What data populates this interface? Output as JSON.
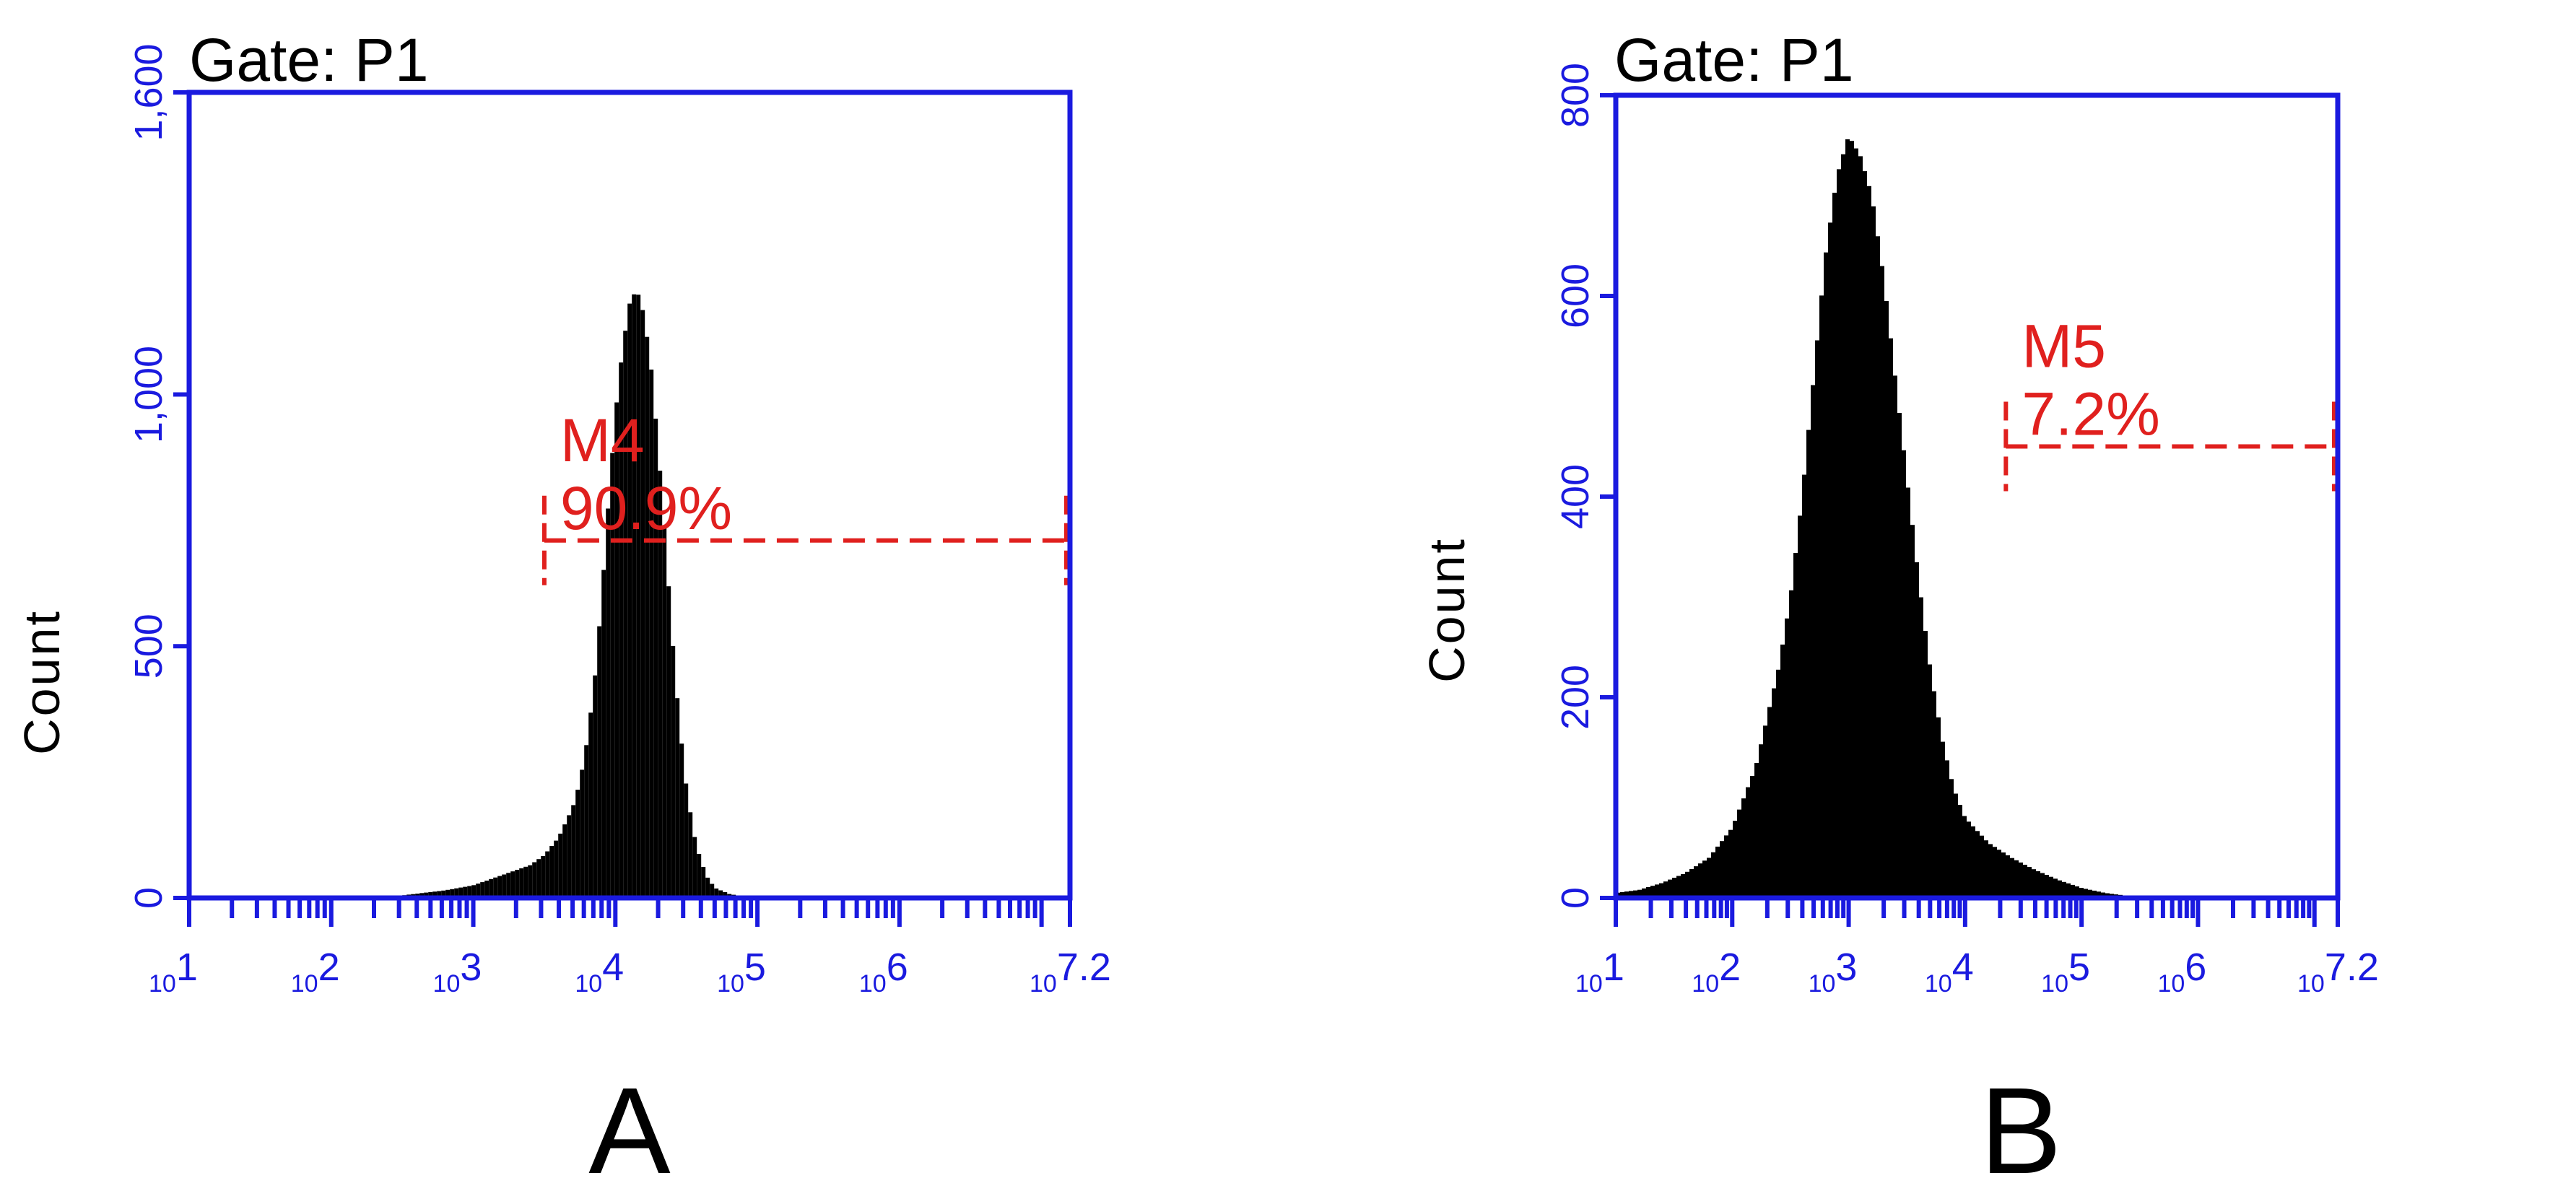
{
  "colors": {
    "axis": "#1a1adf",
    "marker": "#e0201e",
    "histogram": "#000000",
    "text": "#000000"
  },
  "chart_data": [
    {
      "type": "area",
      "panel_label": "A",
      "title": "Gate: P1",
      "xlabel": "",
      "ylabel": "Count",
      "x_scale": "log10",
      "xlim": [
        1,
        7.2
      ],
      "x_tick_labels": [
        {
          "base": "10",
          "exp": "1"
        },
        {
          "base": "10",
          "exp": "2"
        },
        {
          "base": "10",
          "exp": "3"
        },
        {
          "base": "10",
          "exp": "4"
        },
        {
          "base": "10",
          "exp": "5"
        },
        {
          "base": "10",
          "exp": "6"
        },
        {
          "base": "10",
          "exp": "7.2"
        }
      ],
      "ylim": [
        0,
        1600
      ],
      "y_ticks": [
        0,
        500,
        1000,
        1600
      ],
      "y_tick_labels": [
        "0",
        "500",
        "1,000",
        "1,600"
      ],
      "series": [
        {
          "x": [
            2.5,
            2.8,
            3.0,
            3.2,
            3.4,
            3.5,
            3.6,
            3.7,
            3.75,
            3.8,
            3.85,
            3.9,
            3.95,
            4.0,
            4.05,
            4.1,
            4.15,
            4.2,
            4.25,
            4.3,
            4.35,
            4.4,
            4.45,
            4.5,
            4.55,
            4.6,
            4.65,
            4.7,
            4.8,
            4.9,
            5.0
          ],
          "y": [
            5,
            15,
            25,
            45,
            65,
            85,
            120,
            180,
            230,
            310,
            420,
            580,
            780,
            960,
            1090,
            1180,
            1210,
            1160,
            1060,
            900,
            720,
            520,
            350,
            220,
            130,
            75,
            40,
            20,
            8,
            3,
            0
          ]
        }
      ],
      "markers": [
        {
          "name": "M4",
          "label": "90.9%",
          "x_start": 3.5,
          "x_end": 7.2,
          "y_level": 710
        }
      ]
    },
    {
      "type": "area",
      "panel_label": "B",
      "title": "Gate: P1",
      "xlabel": "",
      "ylabel": "Count",
      "x_scale": "log10",
      "xlim": [
        1,
        7.2
      ],
      "x_tick_labels": [
        {
          "base": "10",
          "exp": "1"
        },
        {
          "base": "10",
          "exp": "2"
        },
        {
          "base": "10",
          "exp": "3"
        },
        {
          "base": "10",
          "exp": "4"
        },
        {
          "base": "10",
          "exp": "5"
        },
        {
          "base": "10",
          "exp": "6"
        },
        {
          "base": "10",
          "exp": "7.2"
        }
      ],
      "ylim": [
        0,
        800
      ],
      "y_ticks": [
        0,
        200,
        400,
        600,
        800
      ],
      "y_tick_labels": [
        "0",
        "200",
        "400",
        "600",
        "800"
      ],
      "series": [
        {
          "x": [
            1.0,
            1.2,
            1.4,
            1.6,
            1.8,
            2.0,
            2.2,
            2.4,
            2.5,
            2.6,
            2.7,
            2.8,
            2.9,
            2.95,
            3.0,
            3.05,
            3.1,
            3.15,
            3.2,
            3.3,
            3.4,
            3.5,
            3.6,
            3.7,
            3.8,
            3.9,
            4.0,
            4.2,
            4.4,
            4.6,
            4.8,
            5.0,
            5.2,
            5.4,
            5.6
          ],
          "y": [
            5,
            8,
            15,
            25,
            40,
            70,
            130,
            230,
            300,
            400,
            520,
            640,
            720,
            740,
            760,
            750,
            740,
            720,
            700,
            620,
            520,
            420,
            320,
            230,
            160,
            110,
            80,
            55,
            40,
            28,
            18,
            10,
            5,
            2,
            0
          ]
        }
      ],
      "markers": [
        {
          "name": "M5",
          "label": "7.2%",
          "x_start": 4.35,
          "x_end": 7.2,
          "y_level": 450
        }
      ]
    }
  ]
}
